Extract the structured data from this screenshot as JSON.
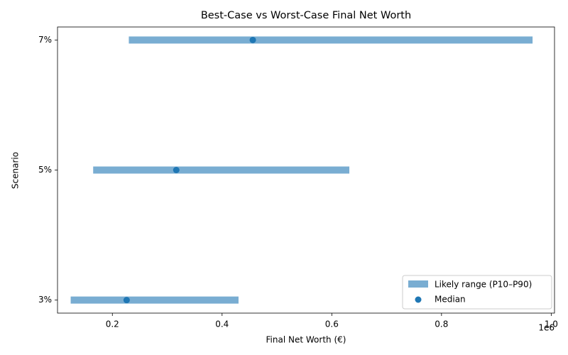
{
  "chart_data": {
    "type": "range",
    "title": "Best-Case vs Worst-Case Final Net Worth",
    "x_label": "Final Net Worth (€)",
    "y_label": "Scenario",
    "x_offset_label": "1e6",
    "categories": [
      "3%",
      "5%",
      "7%"
    ],
    "series": [
      {
        "name": "Likely range (P10–P90)",
        "color": "#1f77b4",
        "low": [
          0.124,
          0.165,
          0.23
        ],
        "high": [
          0.43,
          0.632,
          0.966
        ]
      },
      {
        "name": "Median",
        "color": "#1f77b4",
        "values": [
          0.226,
          0.3165,
          0.456
        ]
      }
    ],
    "xlim": [
      0.1,
      1.006
    ],
    "xticks": [
      0.2,
      0.4,
      0.6,
      0.8,
      {
        "value": 1,
        "label": "1.0"
      }
    ],
    "legend": "lower right"
  }
}
